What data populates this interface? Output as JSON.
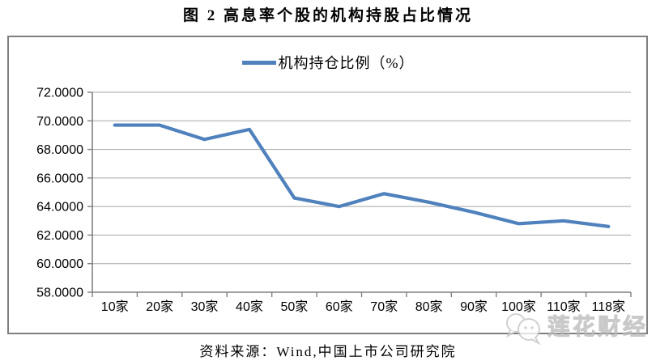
{
  "page_title": "图 2  高息率个股的机构持股占比情况",
  "legend": {
    "label": "机构持仓比例（%）",
    "swatch_color": "#4F81BD"
  },
  "source_note": "资料来源：Wind,中国上市公司研究院",
  "watermark": {
    "brand": "莲花财经",
    "logo": "chat-bubbles-logo"
  },
  "colors": {
    "line": "#4F81BD",
    "gridline": "#A6A6A6",
    "axis": "#808080",
    "frame_border": "#7F7F7F",
    "text": "#000000",
    "watermark": "#C4C4C4",
    "background": "#FFFFFF"
  },
  "chart_data": {
    "type": "line",
    "title": "图 2  高息率个股的机构持股占比情况",
    "categories": [
      "10家",
      "20家",
      "30家",
      "40家",
      "50家",
      "60家",
      "70家",
      "80家",
      "90家",
      "100家",
      "110家",
      "118家"
    ],
    "series": [
      {
        "name": "机构持仓比例（%）",
        "color": "#4F81BD",
        "values": [
          69.7,
          69.7,
          68.7,
          69.4,
          64.6,
          64.0,
          64.9,
          64.3,
          63.6,
          62.8,
          63.0,
          62.6
        ]
      }
    ],
    "xlabel": "",
    "ylabel": "",
    "ylim": [
      58,
      72
    ],
    "ytick_interval": 2,
    "yticks": [
      "58.0000",
      "60.0000",
      "62.0000",
      "64.0000",
      "66.0000",
      "68.0000",
      "70.0000",
      "72.0000"
    ],
    "grid": "horizontal",
    "legend_position": "top-center"
  }
}
